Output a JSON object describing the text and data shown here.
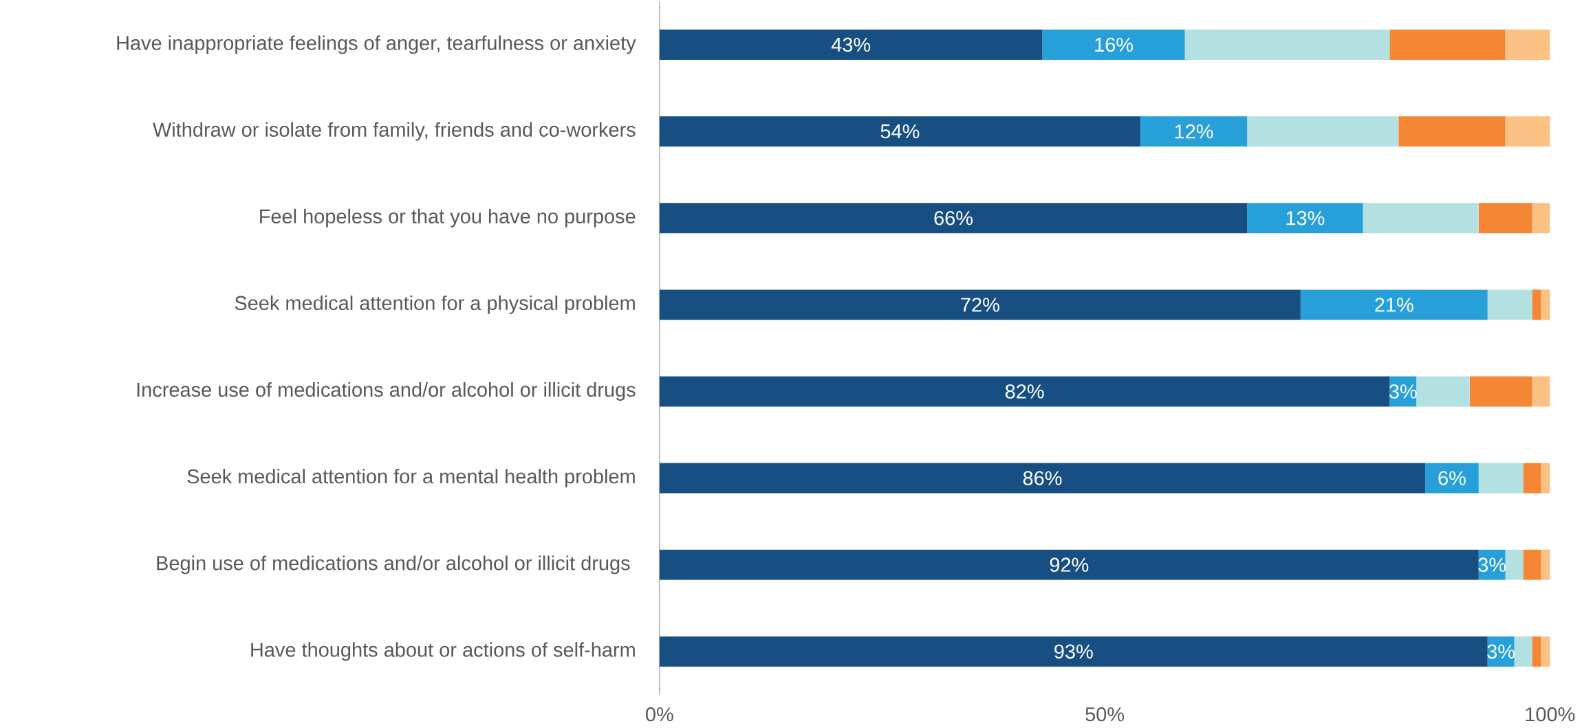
{
  "chart_data": {
    "type": "bar",
    "orientation": "horizontal",
    "stacked": true,
    "categories": [
      "Have inappropriate feelings of anger, tearfulness or anxiety",
      "Withdraw or isolate from family, friends and co-workers",
      "Feel hopeless or that you have no purpose",
      "Seek medical attention for a physical problem",
      "Increase use of medications and/or alcohol or illicit drugs",
      "Seek medical attention for a mental health problem",
      "Begin use of medications and/or alcohol or illicit drugs ",
      "Have thoughts about or actions of self-harm"
    ],
    "series": [
      {
        "color": "#174f82",
        "values": [
          43,
          54,
          66,
          72,
          82,
          86,
          92,
          93
        ],
        "value_labels": [
          "43%",
          "54%",
          "66%",
          "72%",
          "82%",
          "86%",
          "92%",
          "93%"
        ]
      },
      {
        "color": "#279fd9",
        "values": [
          16,
          12,
          13,
          21,
          3,
          6,
          3,
          3
        ],
        "value_labels": [
          "16%",
          "12%",
          "13%",
          "21%",
          "3%",
          "6%",
          "3%",
          "3%"
        ]
      },
      {
        "color": "#b3e0e0",
        "values": [
          23,
          17,
          13,
          5,
          6,
          5,
          2,
          2
        ]
      },
      {
        "color": "#f48634",
        "values": [
          13,
          12,
          6,
          1,
          7,
          2,
          2,
          1
        ]
      },
      {
        "color": "#fbc083",
        "values": [
          5,
          5,
          2,
          1,
          2,
          1,
          1,
          1
        ]
      }
    ],
    "xlim": [
      0,
      100
    ],
    "xticks": [
      {
        "value": 0,
        "label": "0%"
      },
      {
        "value": 50,
        "label": "50%"
      },
      {
        "value": 100,
        "label": "100%"
      }
    ],
    "grid": false
  }
}
